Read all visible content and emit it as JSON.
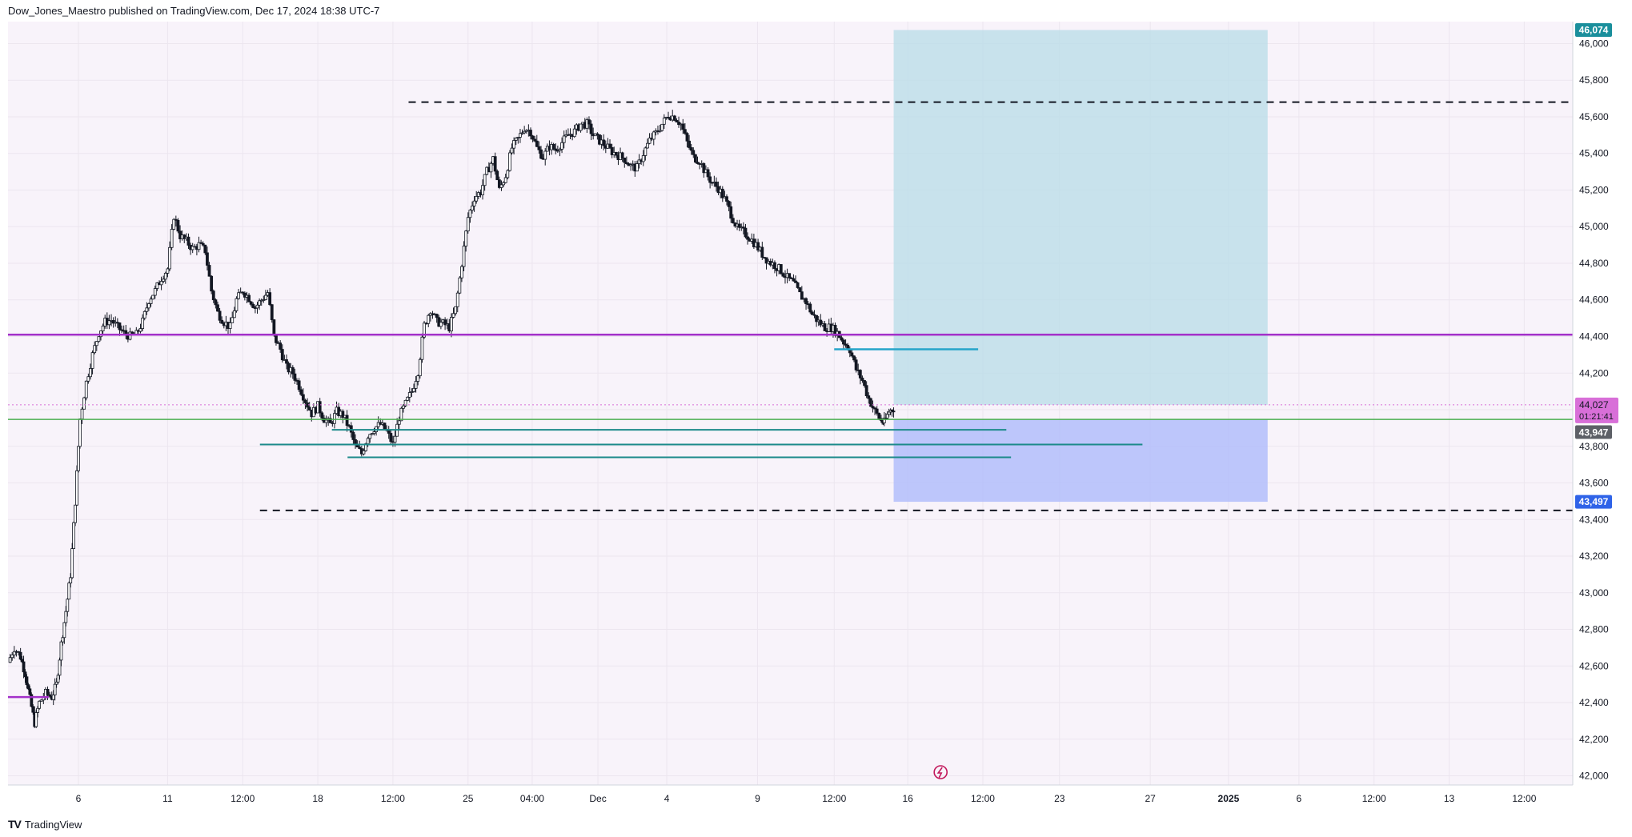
{
  "header": {
    "published": "Dow_Jones_Maestro published on TradingView.com, Dec 17, 2024 18:38 UTC-7"
  },
  "footer": {
    "brand": "TradingView"
  },
  "colors": {
    "background": "#f8f3fa",
    "grid": "#ece6ef",
    "candle": "#131722",
    "purple_level": "#a330c9",
    "green_line": "#4caf50",
    "cyan_line": "#26a5c9",
    "teal_line": "#1c8a8a",
    "target_zone": "#bcdde8",
    "stop_zone": "#b3bdfa",
    "dashed": "#131722",
    "label_teal": "#1a8f9c",
    "label_blue": "#2f63e8",
    "label_pink": "#d86fd8",
    "label_gray": "#5d6067"
  },
  "price_labels": {
    "target": "46,074",
    "current": "44,027",
    "countdown": "01:21:41",
    "entry": "43,947",
    "stop": "43,497"
  },
  "chart_data": {
    "type": "candlestick",
    "title": "",
    "xlabel": "",
    "ylabel": "",
    "ylim": [
      41950,
      46120
    ],
    "y_ticks": [
      42000,
      42200,
      42400,
      42600,
      42800,
      43000,
      43200,
      43400,
      43600,
      43800,
      44000,
      44200,
      44400,
      44600,
      44800,
      45000,
      45200,
      45400,
      45600,
      45800,
      46000
    ],
    "y_tick_labels": [
      "42,000",
      "42,200",
      "42,400",
      "42,600",
      "42,800",
      "43,000",
      "43,200",
      "43,400",
      "43,600",
      "43,800",
      "44,000",
      "44,200",
      "44,400",
      "44,600",
      "44,800",
      "45,000",
      "45,200",
      "45,400",
      "45,600",
      "45,800",
      "46,000"
    ],
    "x_ticks": [
      {
        "label": "6",
        "t": 0.045
      },
      {
        "label": "11",
        "t": 0.102
      },
      {
        "label": "12:00",
        "t": 0.15
      },
      {
        "label": "18",
        "t": 0.198
      },
      {
        "label": "12:00",
        "t": 0.246
      },
      {
        "label": "25",
        "t": 0.294
      },
      {
        "label": "04:00",
        "t": 0.335
      },
      {
        "label": "Dec",
        "t": 0.377
      },
      {
        "label": "4",
        "t": 0.421
      },
      {
        "label": "9",
        "t": 0.479
      },
      {
        "label": "12:00",
        "t": 0.528
      },
      {
        "label": "16",
        "t": 0.575
      },
      {
        "label": "12:00",
        "t": 0.623
      },
      {
        "label": "23",
        "t": 0.672
      },
      {
        "label": "27",
        "t": 0.73
      },
      {
        "label": "2025",
        "t": 0.78
      },
      {
        "label": "6",
        "t": 0.825
      },
      {
        "label": "12:00",
        "t": 0.873
      },
      {
        "label": "13",
        "t": 0.921
      },
      {
        "label": "12:00",
        "t": 0.969
      }
    ],
    "price_path": [
      [
        0.0,
        42620
      ],
      [
        0.004,
        42700
      ],
      [
        0.008,
        42650
      ],
      [
        0.011,
        42560
      ],
      [
        0.014,
        42420
      ],
      [
        0.017,
        42290
      ],
      [
        0.02,
        42400
      ],
      [
        0.024,
        42450
      ],
      [
        0.028,
        42430
      ],
      [
        0.031,
        42500
      ],
      [
        0.034,
        42720
      ],
      [
        0.037,
        42900
      ],
      [
        0.04,
        43100
      ],
      [
        0.043,
        43500
      ],
      [
        0.046,
        43950
      ],
      [
        0.05,
        44150
      ],
      [
        0.054,
        44300
      ],
      [
        0.058,
        44420
      ],
      [
        0.062,
        44480
      ],
      [
        0.066,
        44490
      ],
      [
        0.07,
        44450
      ],
      [
        0.074,
        44420
      ],
      [
        0.078,
        44400
      ],
      [
        0.082,
        44410
      ],
      [
        0.086,
        44480
      ],
      [
        0.09,
        44600
      ],
      [
        0.094,
        44650
      ],
      [
        0.098,
        44720
      ],
      [
        0.102,
        44770
      ],
      [
        0.106,
        45060
      ],
      [
        0.11,
        44950
      ],
      [
        0.114,
        44920
      ],
      [
        0.118,
        44880
      ],
      [
        0.122,
        44900
      ],
      [
        0.126,
        44870
      ],
      [
        0.13,
        44650
      ],
      [
        0.134,
        44530
      ],
      [
        0.138,
        44480
      ],
      [
        0.142,
        44450
      ],
      [
        0.146,
        44600
      ],
      [
        0.15,
        44650
      ],
      [
        0.154,
        44610
      ],
      [
        0.158,
        44560
      ],
      [
        0.162,
        44600
      ],
      [
        0.166,
        44640
      ],
      [
        0.17,
        44400
      ],
      [
        0.174,
        44330
      ],
      [
        0.178,
        44230
      ],
      [
        0.182,
        44200
      ],
      [
        0.186,
        44130
      ],
      [
        0.19,
        44050
      ],
      [
        0.194,
        43980
      ],
      [
        0.198,
        44020
      ],
      [
        0.202,
        43950
      ],
      [
        0.206,
        43920
      ],
      [
        0.21,
        43990
      ],
      [
        0.214,
        43970
      ],
      [
        0.218,
        43900
      ],
      [
        0.222,
        43800
      ],
      [
        0.226,
        43760
      ],
      [
        0.23,
        43860
      ],
      [
        0.234,
        43900
      ],
      [
        0.238,
        43920
      ],
      [
        0.242,
        43880
      ],
      [
        0.246,
        43810
      ],
      [
        0.25,
        43960
      ],
      [
        0.254,
        44030
      ],
      [
        0.258,
        44100
      ],
      [
        0.262,
        44210
      ],
      [
        0.266,
        44460
      ],
      [
        0.27,
        44550
      ],
      [
        0.274,
        44480
      ],
      [
        0.278,
        44470
      ],
      [
        0.282,
        44450
      ],
      [
        0.286,
        44550
      ],
      [
        0.29,
        44800
      ],
      [
        0.294,
        45050
      ],
      [
        0.298,
        45160
      ],
      [
        0.302,
        45190
      ],
      [
        0.306,
        45300
      ],
      [
        0.31,
        45370
      ],
      [
        0.314,
        45200
      ],
      [
        0.318,
        45280
      ],
      [
        0.322,
        45430
      ],
      [
        0.326,
        45480
      ],
      [
        0.33,
        45540
      ],
      [
        0.334,
        45520
      ],
      [
        0.338,
        45430
      ],
      [
        0.342,
        45380
      ],
      [
        0.346,
        45440
      ],
      [
        0.35,
        45420
      ],
      [
        0.354,
        45460
      ],
      [
        0.358,
        45500
      ],
      [
        0.362,
        45520
      ],
      [
        0.366,
        45560
      ],
      [
        0.37,
        45560
      ],
      [
        0.374,
        45500
      ],
      [
        0.378,
        45470
      ],
      [
        0.382,
        45440
      ],
      [
        0.386,
        45410
      ],
      [
        0.39,
        45390
      ],
      [
        0.394,
        45370
      ],
      [
        0.398,
        45330
      ],
      [
        0.402,
        45320
      ],
      [
        0.406,
        45400
      ],
      [
        0.41,
        45470
      ],
      [
        0.414,
        45510
      ],
      [
        0.418,
        45560
      ],
      [
        0.422,
        45610
      ],
      [
        0.426,
        45600
      ],
      [
        0.43,
        45560
      ],
      [
        0.434,
        45460
      ],
      [
        0.438,
        45380
      ],
      [
        0.442,
        45360
      ],
      [
        0.446,
        45290
      ],
      [
        0.45,
        45240
      ],
      [
        0.454,
        45210
      ],
      [
        0.458,
        45150
      ],
      [
        0.462,
        45070
      ],
      [
        0.466,
        44990
      ],
      [
        0.47,
        44970
      ],
      [
        0.474,
        44940
      ],
      [
        0.478,
        44900
      ],
      [
        0.482,
        44850
      ],
      [
        0.486,
        44810
      ],
      [
        0.49,
        44790
      ],
      [
        0.494,
        44760
      ],
      [
        0.498,
        44720
      ],
      [
        0.502,
        44690
      ],
      [
        0.506,
        44630
      ],
      [
        0.51,
        44590
      ],
      [
        0.514,
        44520
      ],
      [
        0.518,
        44480
      ],
      [
        0.522,
        44450
      ],
      [
        0.526,
        44450
      ],
      [
        0.53,
        44420
      ],
      [
        0.534,
        44370
      ],
      [
        0.538,
        44330
      ],
      [
        0.542,
        44220
      ],
      [
        0.546,
        44160
      ],
      [
        0.55,
        44060
      ],
      [
        0.554,
        43990
      ],
      [
        0.558,
        43940
      ],
      [
        0.56,
        43930
      ],
      [
        0.563,
        43990
      ],
      [
        0.566,
        44010
      ]
    ],
    "levels": [
      {
        "name": "resistance-dashed",
        "price": 45680,
        "t_start": 0.256,
        "t_end": 1.0,
        "style": "dashed"
      },
      {
        "name": "support-dashed",
        "price": 43450,
        "t_start": 0.161,
        "t_end": 1.0,
        "style": "dashed"
      },
      {
        "name": "purple-level",
        "price": 44410,
        "t_start": 0.0,
        "t_end": 1.0,
        "style": "purple"
      },
      {
        "name": "purple-low-level",
        "price": 42430,
        "t_start": 0.0,
        "t_end": 0.026,
        "style": "purple"
      },
      {
        "name": "green-entry-line",
        "price": 43947,
        "t_start": 0.0,
        "t_end": 1.0,
        "style": "green"
      },
      {
        "name": "cyan-level",
        "price": 44330,
        "t_start": 0.528,
        "t_end": 0.62,
        "style": "cyan"
      },
      {
        "name": "teal-level-1",
        "price": 43890,
        "t_start": 0.207,
        "t_end": 0.638,
        "style": "teal"
      },
      {
        "name": "teal-level-2",
        "price": 43810,
        "t_start": 0.161,
        "t_end": 0.725,
        "style": "teal"
      },
      {
        "name": "teal-level-3",
        "price": 43740,
        "t_start": 0.217,
        "t_end": 0.641,
        "style": "teal"
      }
    ],
    "position_tool": {
      "t_start": 0.566,
      "t_end": 0.805,
      "target": 46074,
      "entry": 44027,
      "entry_low": 43947,
      "stop": 43497
    },
    "grid": true
  }
}
